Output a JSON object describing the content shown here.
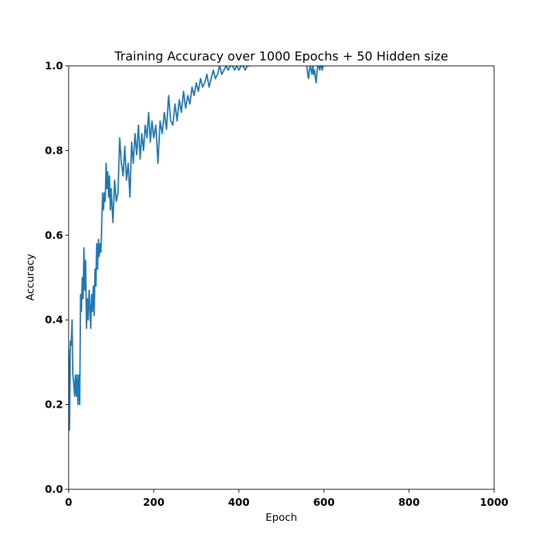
{
  "chart_data": {
    "type": "line",
    "title": "Training Accuracy over 1000 Epochs + 50 Hidden size",
    "xlabel": "Epoch",
    "ylabel": "Accuracy",
    "xlim": [
      0,
      1000
    ],
    "ylim": [
      0.0,
      1.0
    ],
    "xticks": [
      0,
      200,
      400,
      600,
      800,
      1000
    ],
    "xtick_labels": [
      "0",
      "200",
      "400",
      "600",
      "800",
      "1000"
    ],
    "yticks": [
      0.0,
      0.2,
      0.4,
      0.6,
      0.8,
      1.0
    ],
    "ytick_labels": [
      "0.0",
      "0.2",
      "0.4",
      "0.6",
      "0.8",
      "1.0"
    ],
    "grid": false,
    "series": [
      {
        "color": "#1f77b4",
        "x": [
          0,
          2,
          4,
          6,
          8,
          10,
          12,
          14,
          16,
          18,
          20,
          22,
          24,
          26,
          28,
          30,
          32,
          34,
          36,
          38,
          40,
          42,
          44,
          46,
          48,
          50,
          52,
          54,
          56,
          58,
          60,
          62,
          64,
          66,
          68,
          70,
          72,
          74,
          76,
          78,
          80,
          82,
          84,
          86,
          88,
          90,
          92,
          94,
          96,
          98,
          100,
          104,
          108,
          112,
          116,
          120,
          124,
          128,
          132,
          136,
          140,
          144,
          148,
          152,
          156,
          160,
          164,
          168,
          172,
          176,
          180,
          184,
          188,
          192,
          196,
          200,
          205,
          210,
          215,
          220,
          225,
          230,
          235,
          240,
          245,
          250,
          255,
          260,
          265,
          270,
          275,
          280,
          285,
          290,
          295,
          300,
          305,
          310,
          315,
          320,
          325,
          330,
          335,
          340,
          345,
          350,
          355,
          360,
          365,
          370,
          375,
          380,
          385,
          390,
          395,
          400,
          405,
          410,
          415,
          420,
          425
        ],
        "y": [
          0.33,
          0.14,
          0.35,
          0.34,
          0.4,
          0.27,
          0.25,
          0.22,
          0.27,
          0.22,
          0.27,
          0.2,
          0.27,
          0.2,
          0.46,
          0.42,
          0.5,
          0.45,
          0.57,
          0.47,
          0.54,
          0.38,
          0.45,
          0.4,
          0.47,
          0.43,
          0.38,
          0.46,
          0.42,
          0.48,
          0.41,
          0.52,
          0.48,
          0.58,
          0.52,
          0.59,
          0.55,
          0.58,
          0.56,
          0.64,
          0.7,
          0.66,
          0.7,
          0.68,
          0.77,
          0.71,
          0.75,
          0.69,
          0.74,
          0.66,
          0.71,
          0.63,
          0.73,
          0.68,
          0.7,
          0.83,
          0.77,
          0.74,
          0.81,
          0.73,
          0.77,
          0.69,
          0.82,
          0.77,
          0.84,
          0.79,
          0.86,
          0.78,
          0.84,
          0.8,
          0.86,
          0.83,
          0.89,
          0.82,
          0.87,
          0.83,
          0.86,
          0.77,
          0.87,
          0.84,
          0.89,
          0.85,
          0.93,
          0.87,
          0.86,
          0.91,
          0.87,
          0.92,
          0.89,
          0.94,
          0.9,
          0.93,
          0.91,
          0.95,
          0.93,
          0.96,
          0.94,
          0.97,
          0.95,
          0.96,
          0.98,
          0.95,
          0.97,
          0.99,
          0.97,
          0.98,
          1.0,
          0.98,
          0.99,
          1.0,
          0.99,
          1.0,
          1.0,
          0.99,
          1.0,
          0.99,
          1.0,
          1.0,
          0.99,
          1.0,
          1.0
        ]
      },
      {
        "color": "#1f77b4",
        "x": [
          560,
          562,
          564,
          566,
          568,
          570,
          572,
          574,
          576,
          578,
          580,
          582,
          584,
          586,
          588,
          590,
          592,
          594,
          596,
          598,
          600
        ],
        "y": [
          1.0,
          0.98,
          0.97,
          0.99,
          1.0,
          0.99,
          0.98,
          1.0,
          0.98,
          0.99,
          0.97,
          0.96,
          0.99,
          1.0,
          1.0,
          0.99,
          1.0,
          1.0,
          0.99,
          1.0,
          1.0
        ]
      }
    ]
  }
}
